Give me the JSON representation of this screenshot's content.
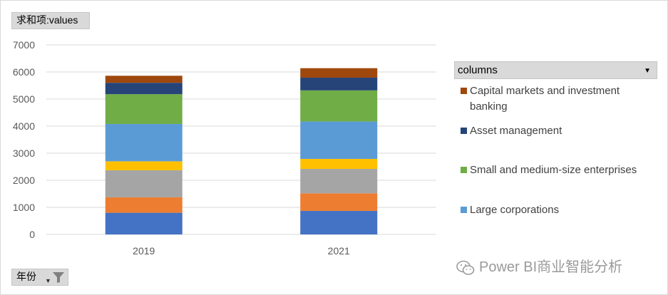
{
  "value_field_label": "求和项:values",
  "axis_field_label": "年份",
  "legend_field_label": "columns",
  "watermark": "Power BI商业智能分析",
  "chart_data": {
    "type": "bar",
    "stacked": true,
    "categories": [
      "2019",
      "2021"
    ],
    "ylim": [
      0,
      7000
    ],
    "yticks": [
      0,
      1000,
      2000,
      3000,
      4000,
      5000,
      6000,
      7000
    ],
    "grid": true,
    "legend_position": "right",
    "series": [
      {
        "values": [
          800,
          870
        ],
        "color": "#4472c4"
      },
      {
        "values": [
          570,
          650
        ],
        "color": "#ed7d31"
      },
      {
        "values": [
          1000,
          900
        ],
        "color": "#a5a5a5"
      },
      {
        "values": [
          330,
          370
        ],
        "color": "#ffc000"
      },
      {
        "name": "Large corporations",
        "values": [
          1380,
          1380
        ],
        "color": "#5b9bd5"
      },
      {
        "name": "Small and medium-size enterprises",
        "values": [
          1100,
          1150
        ],
        "color": "#70ad47"
      },
      {
        "name": "Asset management",
        "values": [
          420,
          470
        ],
        "color": "#264478"
      },
      {
        "name": "Capital markets and investment banking",
        "values": [
          260,
          350
        ],
        "color": "#9e480e"
      }
    ],
    "legend_visible": [
      {
        "name": "Capital markets and investment banking",
        "color": "#9e480e"
      },
      {
        "name": "Asset management",
        "color": "#264478"
      },
      {
        "name": "Small and medium-size enterprises",
        "color": "#70ad47"
      },
      {
        "name": "Large corporations",
        "color": "#5b9bd5"
      }
    ]
  }
}
